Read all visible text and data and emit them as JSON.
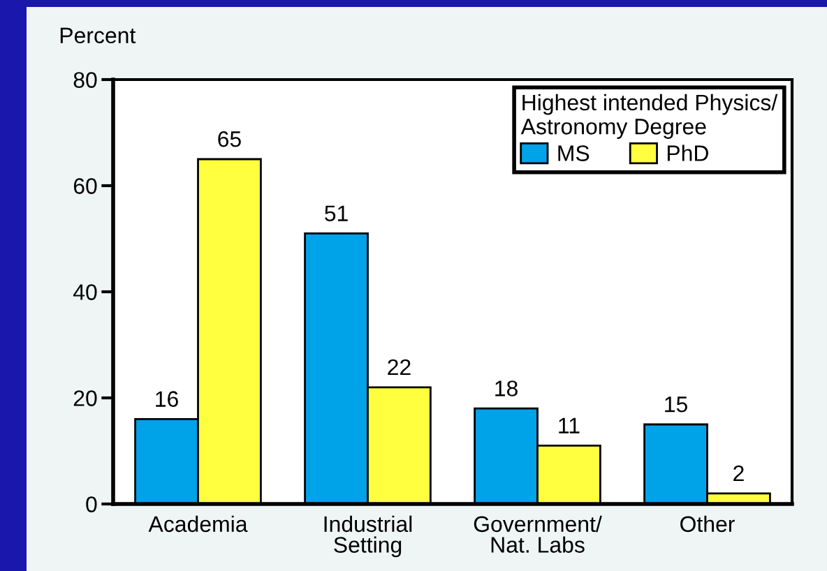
{
  "chart_data": {
    "type": "bar",
    "ylabel": "Percent",
    "categories": [
      "Academia",
      "Industrial\nSetting",
      "Government/\nNat. Labs",
      "Other"
    ],
    "series": [
      {
        "name": "MS",
        "color": "#00a2e8",
        "values": [
          16,
          51,
          18,
          15
        ]
      },
      {
        "name": "PhD",
        "color": "#ffff40",
        "values": [
          65,
          22,
          11,
          2
        ]
      }
    ],
    "ylim": [
      0,
      80
    ],
    "yticks": [
      0,
      20,
      40,
      60,
      80
    ],
    "legend": "top right",
    "legend_title": "Highest intended Physics/\nAstronomy Degree",
    "data_labels": true
  }
}
